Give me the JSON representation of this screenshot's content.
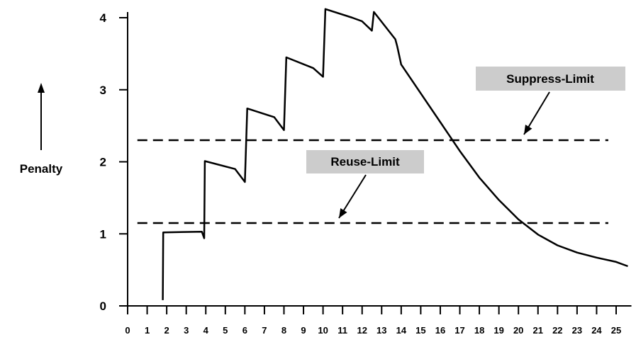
{
  "chart_data": {
    "type": "line",
    "title": "",
    "xlabel": "",
    "ylabel": "Penalty",
    "xlim": [
      0,
      25.6
    ],
    "ylim": [
      0,
      4.1
    ],
    "x_ticks": [
      "0",
      "1",
      "2",
      "3",
      "4",
      "5",
      "6",
      "7",
      "8",
      "9",
      "10",
      "11",
      "12",
      "13",
      "14",
      "15",
      "16",
      "17",
      "18",
      "19",
      "20",
      "21",
      "22",
      "23",
      "24",
      "25"
    ],
    "y_ticks": [
      "0",
      "1",
      "2",
      "3",
      "4"
    ],
    "grid": false,
    "legend": "none",
    "series": [
      {
        "points": [
          [
            1.8,
            0.08
          ],
          [
            1.82,
            1.02
          ],
          [
            3.8,
            1.03
          ],
          [
            3.92,
            0.94
          ],
          [
            3.95,
            2.01
          ],
          [
            5.5,
            1.9
          ],
          [
            6.0,
            1.72
          ],
          [
            6.12,
            2.74
          ],
          [
            7.5,
            2.62
          ],
          [
            8.0,
            2.44
          ],
          [
            8.12,
            3.45
          ],
          [
            9.5,
            3.3
          ],
          [
            10.0,
            3.18
          ],
          [
            10.12,
            4.12
          ],
          [
            11.5,
            4.0
          ],
          [
            12.0,
            3.95
          ],
          [
            12.5,
            3.82
          ],
          [
            12.6,
            4.08
          ],
          [
            13.7,
            3.7
          ],
          [
            13.8,
            3.6
          ],
          [
            14.0,
            3.35
          ],
          [
            15.0,
            2.95
          ],
          [
            16.0,
            2.55
          ],
          [
            17.0,
            2.15
          ],
          [
            18.0,
            1.78
          ],
          [
            19.0,
            1.47
          ],
          [
            20.0,
            1.2
          ],
          [
            21.0,
            0.99
          ],
          [
            22.0,
            0.84
          ],
          [
            23.0,
            0.74
          ],
          [
            24.0,
            0.67
          ],
          [
            25.0,
            0.61
          ],
          [
            25.6,
            0.55
          ]
        ]
      }
    ],
    "reference_lines": [
      {
        "label": "Suppress-Limit",
        "y": 2.3
      },
      {
        "label": "Reuse-Limit",
        "y": 1.15
      }
    ],
    "colors": {
      "line": "#000000",
      "label_background": "#cccccc"
    }
  }
}
